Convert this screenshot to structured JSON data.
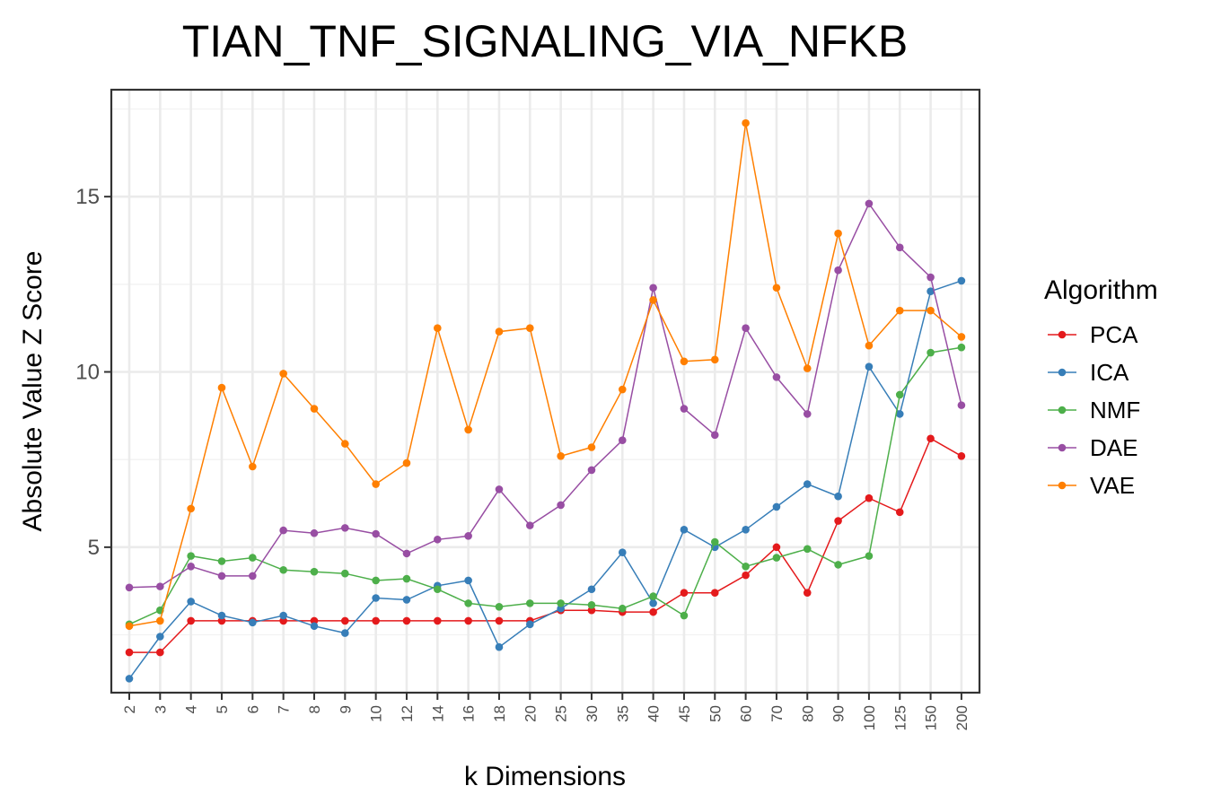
{
  "chart_data": {
    "type": "line",
    "title": "TIAN_TNF_SIGNALING_VIA_NFKB",
    "xlabel": "k Dimensions",
    "ylabel": "Absolute Value Z Score",
    "categories": [
      "2",
      "3",
      "4",
      "5",
      "6",
      "7",
      "8",
      "9",
      "10",
      "12",
      "14",
      "16",
      "18",
      "20",
      "25",
      "30",
      "35",
      "40",
      "45",
      "50",
      "60",
      "70",
      "80",
      "90",
      "100",
      "125",
      "150",
      "200"
    ],
    "ylim": [
      0.85,
      18.05
    ],
    "yticks": [
      5,
      10,
      15
    ],
    "ytick_labels": [
      "5",
      "10",
      "15"
    ],
    "grid": true,
    "legend_title": "Algorithm",
    "legend_position": "right",
    "series": [
      {
        "name": "PCA",
        "color": "#e41a1c",
        "values": [
          2.0,
          2.0,
          2.9,
          2.9,
          2.9,
          2.9,
          2.9,
          2.9,
          2.9,
          2.9,
          2.9,
          2.9,
          2.9,
          2.9,
          3.2,
          3.2,
          3.15,
          3.15,
          3.7,
          3.7,
          4.2,
          5.0,
          3.7,
          5.75,
          6.4,
          6.0,
          8.1,
          7.6
        ]
      },
      {
        "name": "ICA",
        "color": "#377eb8",
        "values": [
          1.25,
          2.45,
          3.45,
          3.05,
          2.85,
          3.05,
          2.75,
          2.55,
          3.55,
          3.5,
          3.9,
          4.05,
          2.15,
          2.8,
          3.25,
          3.8,
          4.85,
          3.4,
          5.5,
          5.0,
          5.5,
          6.15,
          6.8,
          6.45,
          10.15,
          8.8,
          12.3,
          12.6
        ]
      },
      {
        "name": "NMF",
        "color": "#4daf4a",
        "values": [
          2.8,
          3.2,
          4.75,
          4.6,
          4.7,
          4.35,
          4.3,
          4.25,
          4.05,
          4.1,
          3.8,
          3.4,
          3.3,
          3.4,
          3.4,
          3.35,
          3.25,
          3.6,
          3.05,
          5.15,
          4.45,
          4.7,
          4.95,
          4.5,
          4.75,
          9.35,
          10.55,
          10.7
        ]
      },
      {
        "name": "DAE",
        "color": "#984ea3",
        "values": [
          3.85,
          3.88,
          4.45,
          4.18,
          4.18,
          5.48,
          5.4,
          5.55,
          5.38,
          4.82,
          5.22,
          5.32,
          6.65,
          5.62,
          6.2,
          7.2,
          8.05,
          12.4,
          8.95,
          8.2,
          11.25,
          9.85,
          8.8,
          12.9,
          14.8,
          13.55,
          12.7,
          9.05
        ]
      },
      {
        "name": "VAE",
        "color": "#ff7f00",
        "values": [
          2.75,
          2.9,
          6.1,
          9.55,
          7.3,
          9.95,
          8.95,
          7.95,
          6.8,
          7.4,
          11.25,
          8.35,
          11.15,
          11.25,
          7.6,
          7.85,
          9.5,
          12.05,
          10.3,
          10.35,
          17.1,
          12.4,
          10.1,
          13.95,
          10.75,
          11.75,
          11.75,
          11.0
        ]
      }
    ]
  }
}
